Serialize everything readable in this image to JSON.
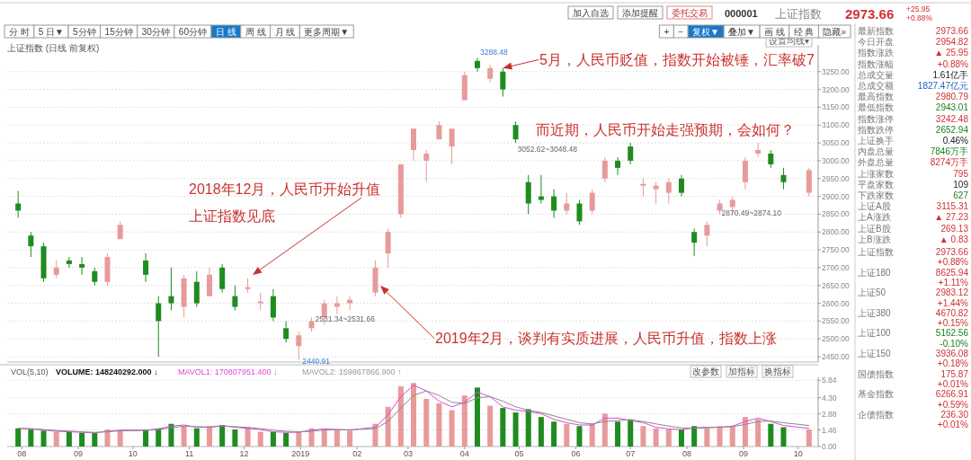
{
  "chart_data": [
    {
      "type": "candlestick",
      "title": "上证指数 (日线 前复权)",
      "tick_labels": "y",
      "grid": "y",
      "xlim": [
        "2018-07-24",
        "2019-10-12"
      ],
      "ylim": [
        2435,
        3325
      ],
      "yticks": [
        {
          "value": 2450,
          "label": "2450.00"
        },
        {
          "value": 2500,
          "label": "2500.00"
        },
        {
          "value": 2550,
          "label": "2550.00"
        },
        {
          "value": 2600,
          "label": "2600.00"
        },
        {
          "value": 2650,
          "label": "2650.00"
        },
        {
          "value": 2700,
          "label": "2700.00"
        },
        {
          "value": 2750,
          "label": "2750.00"
        },
        {
          "value": 2800,
          "label": "2800.00"
        },
        {
          "value": 2850,
          "label": "2850.00"
        },
        {
          "value": 2900,
          "label": "2900.00"
        },
        {
          "value": 2950,
          "label": "2950.00"
        },
        {
          "value": 3000,
          "label": "3000.00"
        },
        {
          "value": 3050,
          "label": "3050.00"
        },
        {
          "value": 3100,
          "label": "3100.00"
        },
        {
          "value": 3150,
          "label": "3150.00"
        },
        {
          "value": 3200,
          "label": "3200.00"
        },
        {
          "value": 3250,
          "label": "3250.00"
        }
      ],
      "x": [
        "2018-07-30",
        "2018-08-06",
        "2018-08-13",
        "2018-08-20",
        "2018-08-27",
        "2018-09-03",
        "2018-09-10",
        "2018-09-17",
        "2018-09-24",
        "2018-10-08",
        "2018-10-15",
        "2018-10-22",
        "2018-10-29",
        "2018-11-05",
        "2018-11-12",
        "2018-11-19",
        "2018-11-26",
        "2018-12-03",
        "2018-12-10",
        "2018-12-17",
        "2018-12-24",
        "2018-12-31",
        "2019-01-07",
        "2019-01-14",
        "2019-01-21",
        "2019-01-28",
        "2019-02-11",
        "2019-02-18",
        "2019-02-25",
        "2019-03-04",
        "2019-03-11",
        "2019-03-18",
        "2019-03-25",
        "2019-04-01",
        "2019-04-08",
        "2019-04-15",
        "2019-04-22",
        "2019-04-29",
        "2019-05-06",
        "2019-05-13",
        "2019-05-20",
        "2019-05-27",
        "2019-06-03",
        "2019-06-10",
        "2019-06-17",
        "2019-06-24",
        "2019-07-01",
        "2019-07-08",
        "2019-07-15",
        "2019-07-22",
        "2019-07-29",
        "2019-08-05",
        "2019-08-12",
        "2019-08-19",
        "2019-08-26",
        "2019-09-02",
        "2019-09-09",
        "2019-09-16",
        "2019-09-23",
        "2019-10-07"
      ],
      "ohlc": [
        [
          2880,
          2915,
          2840,
          2860
        ],
        [
          2790,
          2800,
          2730,
          2760
        ],
        [
          2760,
          2770,
          2660,
          2670
        ],
        [
          2680,
          2720,
          2670,
          2700
        ],
        [
          2720,
          2730,
          2700,
          2710
        ],
        [
          2710,
          2730,
          2680,
          2700
        ],
        [
          2690,
          2700,
          2650,
          2660
        ],
        [
          2660,
          2740,
          2650,
          2730
        ],
        [
          2780,
          2830,
          2780,
          2820
        ],
        [
          2720,
          2740,
          2660,
          2680
        ],
        [
          2600,
          2620,
          2450,
          2550
        ],
        [
          2620,
          2700,
          2580,
          2600
        ],
        [
          2590,
          2680,
          2560,
          2670
        ],
        [
          2660,
          2690,
          2590,
          2600
        ],
        [
          2620,
          2700,
          2620,
          2680
        ],
        [
          2700,
          2710,
          2630,
          2640
        ],
        [
          2620,
          2650,
          2580,
          2590
        ],
        [
          2640,
          2670,
          2630,
          2645
        ],
        [
          2600,
          2630,
          2580,
          2605
        ],
        [
          2620,
          2640,
          2550,
          2560
        ],
        [
          2530,
          2550,
          2490,
          2500
        ],
        [
          2480,
          2520,
          2440.91,
          2510
        ],
        [
          2530,
          2560,
          2520,
          2550
        ],
        [
          2560,
          2610,
          2540,
          2600
        ],
        [
          2590,
          2620,
          2570,
          2600
        ],
        [
          2600,
          2620,
          2580,
          2610
        ],
        [
          2630,
          2720,
          2620,
          2700
        ],
        [
          2740,
          2810,
          2700,
          2800
        ],
        [
          2850,
          2990,
          2840,
          2990
        ],
        [
          3030,
          3090,
          3000,
          3090
        ],
        [
          3000,
          3030,
          2940,
          3020
        ],
        [
          3060,
          3110,
          3060,
          3100
        ],
        [
          3040,
          3090,
          2990,
          3090
        ],
        [
          3170,
          3250,
          3170,
          3240
        ],
        [
          3280,
          3288.48,
          3250,
          3260
        ],
        [
          3230,
          3270,
          3220,
          3260
        ],
        [
          3250,
          3260,
          3180,
          3200
        ],
        [
          3100,
          3110,
          3050,
          3060
        ],
        [
          2940,
          2960,
          2850,
          2880
        ],
        [
          2900,
          2960,
          2880,
          2890
        ],
        [
          2900,
          2920,
          2840,
          2860
        ],
        [
          2860,
          2910,
          2850,
          2880
        ],
        [
          2880,
          2890,
          2820,
          2830
        ],
        [
          2860,
          2920,
          2850,
          2910
        ],
        [
          2950,
          3010,
          2940,
          3000
        ],
        [
          3000,
          3010,
          2960,
          2980
        ],
        [
          3040,
          3050,
          2990,
          3000
        ],
        [
          2930,
          2950,
          2900,
          2935
        ],
        [
          2920,
          2940,
          2880,
          2930
        ],
        [
          2910,
          2950,
          2880,
          2940
        ],
        [
          2950,
          2960,
          2900,
          2910
        ],
        [
          2800,
          2810,
          2733,
          2770
        ],
        [
          2790,
          2830,
          2760,
          2820
        ],
        [
          2860,
          2890,
          2850,
          2880
        ],
        [
          2870,
          2900,
          2850,
          2890
        ],
        [
          2940,
          3010,
          2920,
          3000
        ],
        [
          3020,
          3050,
          3010,
          3030
        ],
        [
          3020,
          3030,
          2980,
          2990
        ],
        [
          2960,
          2980,
          2920,
          2940
        ],
        [
          2910,
          2980,
          2900,
          2973.66
        ]
      ],
      "colors": [
        "#1e8c1e",
        "#1e8c1e",
        "#1e8c1e",
        "#e89a9a",
        "#1e8c1e",
        "#1e8c1e",
        "#1e8c1e",
        "#e89a9a",
        "#e89a9a",
        "#1e8c1e",
        "#1e8c1e",
        "#1e8c1e",
        "#e89a9a",
        "#1e8c1e",
        "#e89a9a",
        "#1e8c1e",
        "#1e8c1e",
        "#e89a9a",
        "#e89a9a",
        "#1e8c1e",
        "#1e8c1e",
        "#e89a9a",
        "#e89a9a",
        "#e89a9a",
        "#e89a9a",
        "#e89a9a",
        "#e89a9a",
        "#e89a9a",
        "#e89a9a",
        "#e89a9a",
        "#e89a9a",
        "#e89a9a",
        "#e89a9a",
        "#e89a9a",
        "#1e8c1e",
        "#e89a9a",
        "#1e8c1e",
        "#1e8c1e",
        "#1e8c1e",
        "#1e8c1e",
        "#1e8c1e",
        "#e89a9a",
        "#1e8c1e",
        "#e89a9a",
        "#e89a9a",
        "#1e8c1e",
        "#1e8c1e",
        "#e89a9a",
        "#e89a9a",
        "#e89a9a",
        "#1e8c1e",
        "#1e8c1e",
        "#e89a9a",
        "#e89a9a",
        "#e89a9a",
        "#e89a9a",
        "#e89a9a",
        "#1e8c1e",
        "#1e8c1e",
        "#e89a9a"
      ],
      "annotations": [
        "2018年12月，人民币开始升值",
        "上证指数见底",
        "2019年2月，谈判有实质进展，人民币升值，指数上涨",
        {
          "text": "5月，人民币贬值，指数开始被锤，汇率破7",
          "x": "2019-04-22",
          "y": 3260
        },
        "而近期，人民币开始走强预期，会如何？",
        "设置均线▾",
        {
          "text": "3288.48",
          "x": "2019-04-08",
          "y": 3288.48
        },
        {
          "text": "3052.62~3048.48",
          "x": "2019-04-29",
          "y": 3050
        },
        {
          "text": "2870.49~2874.10",
          "x": "2019-08-19",
          "y": 2872
        },
        {
          "text": "2531.34~2531.66",
          "x": "2019-01-07",
          "y": 2531.5
        },
        {
          "text": "2440.91",
          "x": "2018-12-31",
          "y": 2440.91
        }
      ]
    },
    {
      "type": "bar",
      "grid": "y",
      "xlim": [
        "2018-07-24",
        "2019-10-12"
      ],
      "ylim": [
        0,
        6.1
      ],
      "yticks": [
        {
          "value": 0,
          "label": "0.00"
        },
        1.46,
        2.88,
        {
          "value": 4.3,
          "label": "4.30"
        },
        5.84
      ],
      "xticks": [
        {
          "value": "2018-08-01",
          "label": "08"
        },
        {
          "value": "2018-09-01",
          "label": "09"
        },
        {
          "value": "2018-10-01",
          "label": "10"
        },
        {
          "value": "2018-11-01",
          "label": "11"
        },
        {
          "value": "2018-12-01",
          "label": "12"
        },
        {
          "value": "2019-01-01",
          "label": "2019"
        },
        {
          "value": "2019-02-01",
          "label": "02"
        },
        {
          "value": "2019-03-01",
          "label": "03"
        },
        {
          "value": "2019-04-01",
          "label": "04"
        },
        {
          "value": "2019-05-01",
          "label": "05"
        },
        {
          "value": "2019-06-01",
          "label": "06"
        },
        {
          "value": "2019-07-01",
          "label": "07"
        },
        {
          "value": "2019-08-01",
          "label": "08"
        },
        {
          "value": "2019-09-01",
          "label": "09"
        },
        {
          "value": "2019-10-01",
          "label": "10"
        }
      ],
      "x": [
        "2018-07-30",
        "2018-08-06",
        "2018-08-13",
        "2018-08-20",
        "2018-08-27",
        "2018-09-03",
        "2018-09-10",
        "2018-09-17",
        "2018-09-24",
        "2018-10-08",
        "2018-10-15",
        "2018-10-22",
        "2018-10-29",
        "2018-11-05",
        "2018-11-12",
        "2018-11-19",
        "2018-11-26",
        "2018-12-03",
        "2018-12-10",
        "2018-12-17",
        "2018-12-24",
        "2018-12-31",
        "2019-01-07",
        "2019-01-14",
        "2019-01-21",
        "2019-01-28",
        "2019-02-11",
        "2019-02-18",
        "2019-02-25",
        "2019-03-04",
        "2019-03-11",
        "2019-03-18",
        "2019-03-25",
        "2019-04-01",
        "2019-04-08",
        "2019-04-15",
        "2019-04-22",
        "2019-04-29",
        "2019-05-06",
        "2019-05-13",
        "2019-05-20",
        "2019-05-27",
        "2019-06-03",
        "2019-06-10",
        "2019-06-17",
        "2019-06-24",
        "2019-07-01",
        "2019-07-08",
        "2019-07-15",
        "2019-07-22",
        "2019-07-29",
        "2019-08-05",
        "2019-08-12",
        "2019-08-19",
        "2019-08-26",
        "2019-09-02",
        "2019-09-09",
        "2019-09-16",
        "2019-09-23",
        "2019-10-07"
      ],
      "series": [
        {
          "type": "bar",
          "values": [
            1.6,
            1.5,
            1.4,
            1.3,
            1.3,
            1.2,
            1.2,
            1.5,
            1.4,
            1.5,
            1.6,
            2.0,
            1.8,
            1.6,
            1.8,
            1.9,
            1.5,
            1.7,
            1.3,
            1.3,
            1.2,
            1.3,
            1.6,
            1.5,
            1.5,
            1.4,
            2.0,
            3.5,
            5.3,
            5.6,
            4.2,
            3.8,
            3.2,
            4.5,
            5.2,
            3.6,
            3.4,
            3.0,
            3.3,
            2.6,
            2.2,
            2.0,
            1.8,
            2.0,
            2.9,
            2.2,
            2.4,
            1.8,
            1.6,
            1.5,
            1.5,
            1.8,
            1.6,
            1.8,
            1.8,
            2.6,
            2.4,
            2.0,
            1.7,
            1.5
          ],
          "colors": [
            "#1e8c1e",
            "#1e8c1e",
            "#1e8c1e",
            "#e89a9a",
            "#1e8c1e",
            "#1e8c1e",
            "#1e8c1e",
            "#e89a9a",
            "#e89a9a",
            "#1e8c1e",
            "#1e8c1e",
            "#1e8c1e",
            "#e89a9a",
            "#1e8c1e",
            "#e89a9a",
            "#1e8c1e",
            "#1e8c1e",
            "#e89a9a",
            "#e89a9a",
            "#1e8c1e",
            "#1e8c1e",
            "#e89a9a",
            "#e89a9a",
            "#e89a9a",
            "#e89a9a",
            "#e89a9a",
            "#e89a9a",
            "#e89a9a",
            "#e89a9a",
            "#e89a9a",
            "#e89a9a",
            "#e89a9a",
            "#e89a9a",
            "#e89a9a",
            "#1e8c1e",
            "#e89a9a",
            "#1e8c1e",
            "#1e8c1e",
            "#1e8c1e",
            "#1e8c1e",
            "#1e8c1e",
            "#e89a9a",
            "#1e8c1e",
            "#e89a9a",
            "#e89a9a",
            "#1e8c1e",
            "#1e8c1e",
            "#e89a9a",
            "#e89a9a",
            "#e89a9a",
            "#1e8c1e",
            "#1e8c1e",
            "#e89a9a",
            "#e89a9a",
            "#e89a9a",
            "#e89a9a",
            "#e89a9a",
            "#1e8c1e",
            "#1e8c1e",
            "#e89a9a"
          ]
        },
        {
          "type": "line",
          "color": "#d84ad8",
          "values": [
            1.6,
            1.55,
            1.45,
            1.35,
            1.3,
            1.25,
            1.2,
            1.35,
            1.45,
            1.45,
            1.55,
            1.8,
            1.9,
            1.7,
            1.7,
            1.85,
            1.7,
            1.6,
            1.5,
            1.3,
            1.25,
            1.25,
            1.45,
            1.55,
            1.5,
            1.45,
            1.7,
            2.8,
            4.4,
            5.4,
            4.9,
            4.0,
            3.5,
            3.9,
            4.8,
            4.4,
            3.5,
            3.2,
            3.1,
            2.9,
            2.4,
            2.1,
            1.9,
            1.9,
            2.5,
            2.5,
            2.3,
            2.1,
            1.7,
            1.55,
            1.5,
            1.65,
            1.7,
            1.7,
            1.8,
            2.2,
            2.5,
            2.2,
            1.85,
            1.6
          ]
        },
        {
          "type": "line",
          "color": "#8a8a8a",
          "values": [
            1.6,
            1.58,
            1.5,
            1.42,
            1.36,
            1.3,
            1.25,
            1.3,
            1.38,
            1.42,
            1.5,
            1.65,
            1.8,
            1.75,
            1.72,
            1.78,
            1.75,
            1.68,
            1.58,
            1.45,
            1.35,
            1.3,
            1.35,
            1.45,
            1.5,
            1.48,
            1.58,
            2.2,
            3.4,
            4.5,
            4.9,
            4.5,
            3.9,
            3.8,
            4.3,
            4.4,
            4.0,
            3.5,
            3.2,
            3.0,
            2.7,
            2.4,
            2.1,
            2.0,
            2.2,
            2.3,
            2.35,
            2.2,
            2.0,
            1.8,
            1.65,
            1.62,
            1.65,
            1.7,
            1.75,
            1.95,
            2.2,
            2.25,
            2.1,
            1.85
          ]
        }
      ],
      "annotations": [
        "VOL(5,10)",
        "VOLUME: 148240292.000 ↓",
        "MAVOL1: 170807951.400 ↓",
        "MAVOL2: 159867866.900 ↑",
        "改参数",
        "加指标",
        "换指标"
      ]
    },
    {
      "type": "other",
      "categories": [
        "最新指数",
        "今日开盘",
        "指数涨跌",
        "指数涨幅",
        "总成交量",
        "总成交额",
        "最高指数",
        "最低指数",
        "指数涨停",
        "指数跌停",
        "上证换手",
        "内盘总量",
        "外盘总量",
        "上涨家数",
        "平盘家数",
        "下跌家数",
        "上证A股",
        "上A涨跌",
        "上证B股",
        "上B涨跌",
        "上证指数",
        null,
        "上证180",
        null,
        "上证50",
        null,
        "上证380",
        null,
        "上证100",
        null,
        "上证150",
        null,
        "国债指数",
        null,
        "基金指数",
        null,
        "企债指数",
        null
      ],
      "value_labels": [
        "2973.66",
        "2954.82",
        "▲ 25.95",
        "+0.88%",
        "1.61亿手",
        "1827.47亿元",
        "2980.79",
        "2943.01",
        "3242.48",
        "2652.94",
        "0.46%",
        "7846万手",
        "8274万手",
        "795",
        "109",
        "627",
        "3115.31",
        "▲ 27.23",
        "269.13",
        "▲ 0.83",
        "2973.66",
        "+0.88%",
        "8625.94",
        "+1.11%",
        "2983.12",
        "+1.44%",
        "4670.82",
        "+0.15%",
        "5162.56",
        "-0.10%",
        "3936.08",
        "+0.18%",
        "175.87",
        "+0.01%",
        "6266.91",
        "+0.59%",
        "236.30",
        "+0.01%"
      ],
      "colors": [
        "#d03030",
        "#d03030",
        "#d03030",
        "#d03030",
        "#222222",
        "#2060c0",
        "#d03030",
        "#208020",
        "#d03030",
        "#208020",
        "#222222",
        "#208020",
        "#d03030",
        "#d03030",
        "#222222",
        "#208020",
        "#d03030",
        "#d03030",
        "#d03030",
        "#d03030",
        "#d03030",
        "#d03030",
        "#d03030",
        "#d03030",
        "#d03030",
        "#d03030",
        "#d03030",
        "#d03030",
        "#208020",
        "#208020",
        "#d03030",
        "#d03030",
        "#d03030",
        "#d03030",
        "#d03030",
        "#d03030",
        "#d03030",
        "#d03030"
      ],
      "annotations": [
        "分 时",
        "5 日▼",
        "5分钟",
        "15分钟",
        "30分钟",
        "60分钟",
        "日 线",
        "周 线",
        "月 线",
        "更多周期▼",
        "+",
        "−",
        "复权▼",
        "叠加▼",
        "画 线",
        "经 典",
        "隐藏»",
        "加入自选",
        "添加提醒",
        "委托交易",
        "000001",
        "上证指数",
        "2973.66",
        "+25.95",
        "+0.88%"
      ]
    }
  ]
}
